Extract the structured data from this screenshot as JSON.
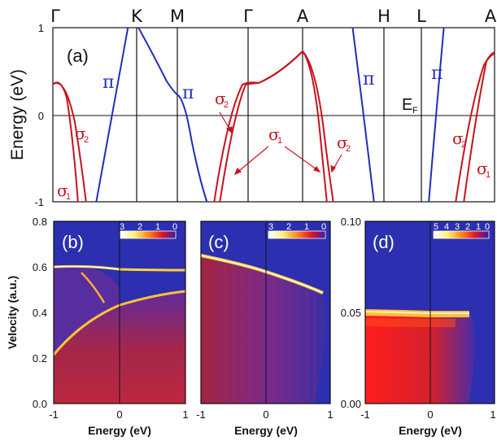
{
  "colors": {
    "pi_band": "#1f2fb8",
    "sigma_band": "#c8121e",
    "map_background": "#2b2fb0",
    "frame": "#111111"
  },
  "chart_data": [
    {
      "panel": "(a)",
      "type": "line",
      "ylabel": "Energy (eV)",
      "ylim": [
        -1,
        1
      ],
      "y_ticks": [
        "1",
        "0",
        "-1"
      ],
      "symmetry_points": [
        "Γ",
        "K",
        "M",
        "Γ",
        "A",
        "H",
        "L",
        "A"
      ],
      "labels": {
        "pi": "π",
        "sigma2_main": "σ",
        "sigma2_main_sub": "2",
        "sigma1_main": "σ",
        "sigma1_main_sub": "1",
        "fermi": "E",
        "fermi_sub": "F"
      },
      "series": [
        {
          "band": "pi",
          "segment": "Γ-K-M",
          "values_desc": "linear crossing near K rising from -1 to above 1, then descending toward M with flattening at 0.22 eV near M"
        },
        {
          "band": "sigma",
          "segment": "Γ-K",
          "points_E": [
            [
              0.0,
              0.35
            ],
            [
              0.3,
              -1.0
            ]
          ]
        },
        {
          "band": "sigma",
          "segment": "M-Γ-A",
          "points_E": [
            [
              0.0,
              -1.0
            ],
            [
              0.5,
              0.35
            ],
            [
              0.85,
              0.72
            ],
            [
              1.0,
              -1.0
            ]
          ]
        },
        {
          "band": "pi",
          "segment": "A-H",
          "points_E": [
            [
              0.3,
              1.0
            ],
            [
              0.75,
              -1.0
            ]
          ]
        },
        {
          "band": "pi",
          "segment": "L-A",
          "points_E": [
            [
              0.2,
              -1.0
            ],
            [
              0.7,
              1.0
            ]
          ]
        },
        {
          "band": "sigma",
          "segment": "L-A",
          "points_E": [
            [
              0.4,
              -1.0
            ],
            [
              1.0,
              0.72
            ]
          ]
        }
      ]
    },
    {
      "panel": "(b)",
      "type": "heatmap",
      "xlabel": "Energy (eV)",
      "ylabel": "Velocity (a.u.)",
      "xlim": [
        -1,
        1
      ],
      "ylim": [
        0,
        0.8
      ],
      "x_ticks": [
        "-1",
        "0",
        "1"
      ],
      "y_ticks": [
        "0.0",
        "0.2",
        "0.4",
        "0.6",
        "0.8"
      ],
      "colorbar_ticks": [
        "3",
        "2",
        "1",
        "0"
      ],
      "features": [
        {
          "name": "upper branch",
          "x": [
            -1.0,
            -0.5,
            0.0,
            0.5,
            1.0
          ],
          "y": [
            0.51,
            0.51,
            0.5,
            0.5,
            0.5
          ]
        },
        {
          "name": "rising branch",
          "x": [
            -1.0,
            -0.5,
            0.0,
            0.5,
            1.0
          ],
          "y": [
            0.22,
            0.37,
            0.44,
            0.49,
            0.51
          ]
        },
        {
          "name": "falling branch",
          "x": [
            -0.5,
            -0.3,
            -0.1
          ],
          "y": [
            0.49,
            0.42,
            0.34
          ]
        }
      ]
    },
    {
      "panel": "(c)",
      "type": "heatmap",
      "xlabel": "Energy (eV)",
      "xlim": [
        -1,
        1
      ],
      "ylim": [
        0,
        0.8
      ],
      "x_ticks": [
        "-1",
        "0",
        "1"
      ],
      "colorbar_ticks": [
        "3",
        "2",
        "1",
        "0"
      ],
      "features": [
        {
          "name": "edge",
          "x": [
            -1.0,
            -0.5,
            0.0,
            0.6
          ],
          "y": [
            0.56,
            0.51,
            0.45,
            0.38
          ]
        }
      ]
    },
    {
      "panel": "(d)",
      "type": "heatmap",
      "xlabel": "Energy (eV)",
      "xlim": [
        -1,
        1
      ],
      "ylim": [
        0,
        0.1
      ],
      "x_ticks": [
        "-1",
        "0",
        "1"
      ],
      "y_ticks": [
        "0.00",
        "0.05",
        "0.10"
      ],
      "colorbar_ticks": [
        "5",
        "4",
        "3",
        "2",
        "1",
        "0"
      ],
      "features": [
        {
          "name": "edge",
          "x": [
            -1.0,
            0.0,
            0.55
          ],
          "y": [
            0.049,
            0.047,
            0.046
          ]
        }
      ]
    }
  ]
}
